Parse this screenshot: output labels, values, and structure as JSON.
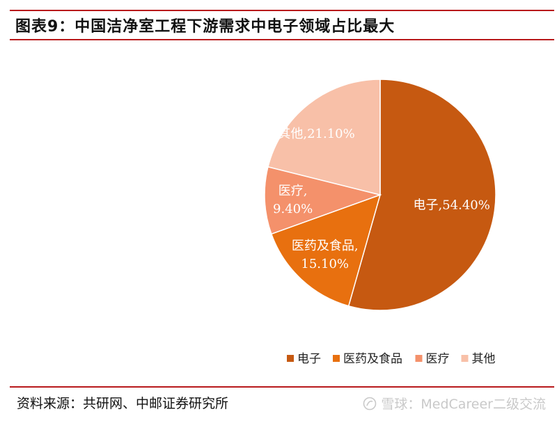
{
  "header": {
    "title": "图表9：中国洁净室工程下游需求中电子领域占比最大"
  },
  "footer": {
    "source": "资料来源：共研网、中邮证券研究所",
    "watermark": "雪球：MedCareer二级交流"
  },
  "colors": {
    "accent_rule": "#b8191b"
  },
  "chart_data": {
    "type": "pie",
    "title": "",
    "unit": "%",
    "slices": [
      {
        "name": "电子",
        "value": 54.4,
        "label_line1": "电子,54.40%",
        "label_line2": "",
        "color": "#c65911"
      },
      {
        "name": "医药及食品",
        "value": 15.1,
        "label_line1": "医药及食品,",
        "label_line2": "15.10%",
        "color": "#e8700f"
      },
      {
        "name": "医疗",
        "value": 9.4,
        "label_line1": "医疗,",
        "label_line2": "9.40%",
        "color": "#f4916b"
      },
      {
        "name": "其他",
        "value": 21.1,
        "label_line1": "其他,21.10%",
        "label_line2": "",
        "color": "#f8c0a8"
      }
    ],
    "legend": {
      "position": "bottom",
      "items": [
        "电子",
        "医药及食品",
        "医疗",
        "其他"
      ]
    }
  }
}
